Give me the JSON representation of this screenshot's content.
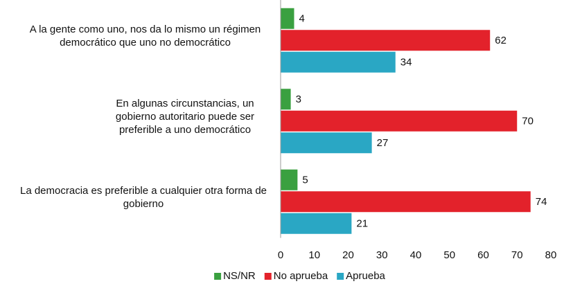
{
  "chart_data": {
    "type": "barh",
    "categories": [
      "A la gente como uno, nos da lo mismo un régimen democrático que uno no democrático",
      "En algunas circunstancias, un gobierno autoritario puede ser preferible a uno democrático",
      "La democracia es preferible a cualquier otra forma de gobierno"
    ],
    "series": [
      {
        "name": "NS/NR",
        "color": "#3aa040",
        "values": [
          4,
          3,
          5
        ]
      },
      {
        "name": "No aprueba",
        "color": "#e3222b",
        "values": [
          62,
          70,
          74
        ]
      },
      {
        "name": "Aprueba",
        "color": "#2aa7c4",
        "values": [
          34,
          27,
          21
        ]
      }
    ],
    "xlim": [
      0,
      80
    ],
    "xticks": [
      0,
      10,
      20,
      30,
      40,
      50,
      60,
      70,
      80
    ],
    "legend": "bottom"
  }
}
